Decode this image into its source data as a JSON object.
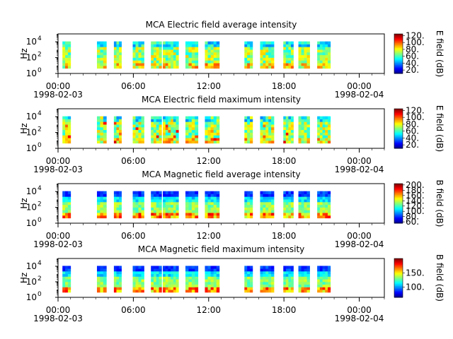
{
  "chart_data": [
    {
      "type": "heatmap",
      "title": "MCA  Electric field average intensity",
      "ylabel": "Hz",
      "yticks": [
        {
          "base": "10",
          "exp": "0"
        },
        {
          "base": "10",
          "exp": "2"
        },
        {
          "base": "10",
          "exp": "4"
        }
      ],
      "ylim_hz": [
        1,
        100000
      ],
      "colorbar_label": "E field (dB)",
      "colorbar_ticks": [
        "120.",
        "100.",
        "80.",
        "60.",
        "40.",
        "20."
      ],
      "colorbar_tick_values": [
        120,
        100,
        80,
        60,
        40,
        20
      ],
      "colorbar_range": [
        10,
        125
      ],
      "palette": "rainbow",
      "band_style": "electric"
    },
    {
      "type": "heatmap",
      "title": "MCA  Electric field maximum intensity",
      "ylabel": "Hz",
      "yticks": [
        {
          "base": "10",
          "exp": "0"
        },
        {
          "base": "10",
          "exp": "2"
        },
        {
          "base": "10",
          "exp": "4"
        }
      ],
      "ylim_hz": [
        1,
        100000
      ],
      "colorbar_label": "E field (dB)",
      "colorbar_ticks": [
        "120.",
        "100.",
        "80.",
        "60.",
        "40.",
        "20."
      ],
      "colorbar_tick_values": [
        120,
        100,
        80,
        60,
        40,
        20
      ],
      "colorbar_range": [
        10,
        125
      ],
      "palette": "rainbow",
      "band_style": "electric"
    },
    {
      "type": "heatmap",
      "title": "MCA  Magnetic field average intensity",
      "ylabel": "Hz",
      "yticks": [
        {
          "base": "10",
          "exp": "0"
        },
        {
          "base": "10",
          "exp": "2"
        },
        {
          "base": "10",
          "exp": "4"
        }
      ],
      "ylim_hz": [
        1,
        100000
      ],
      "colorbar_label": "B field (dB)",
      "colorbar_ticks": [
        "200.",
        "180.",
        "160.",
        "140.",
        "120.",
        "100.",
        "80.",
        "60."
      ],
      "colorbar_tick_values": [
        200,
        180,
        160,
        140,
        120,
        100,
        80,
        60
      ],
      "colorbar_range": [
        55,
        205
      ],
      "palette": "rainbow",
      "band_style": "magnetic"
    },
    {
      "type": "heatmap",
      "title": "MCA  Magnetic field maximum intensity",
      "ylabel": "Hz",
      "yticks": [
        {
          "base": "10",
          "exp": "0"
        },
        {
          "base": "10",
          "exp": "2"
        },
        {
          "base": "10",
          "exp": "4"
        }
      ],
      "ylim_hz": [
        1,
        100000
      ],
      "colorbar_label": "B field (dB)",
      "colorbar_ticks": [
        "150.",
        "100."
      ],
      "colorbar_tick_values": [
        150,
        100
      ],
      "colorbar_range": [
        65,
        200
      ],
      "palette": "rainbow",
      "band_style": "magnetic"
    }
  ],
  "x_axis": {
    "range_hours": [
      0,
      26
    ],
    "major_ticks": [
      {
        "hour": 0,
        "time": "00:00",
        "date": "1998-02-03"
      },
      {
        "hour": 6,
        "time": "06:00",
        "date": ""
      },
      {
        "hour": 12,
        "time": "12:00",
        "date": ""
      },
      {
        "hour": 18,
        "time": "18:00",
        "date": ""
      },
      {
        "hour": 24,
        "time": "00:00",
        "date": "1998-02-04"
      }
    ],
    "minor_tick_step_hours": 1
  },
  "data_intervals_hours": [
    [
      0.35,
      1.0
    ],
    [
      3.1,
      3.85
    ],
    [
      4.45,
      5.05
    ],
    [
      5.95,
      6.85
    ],
    [
      7.4,
      8.25
    ],
    [
      8.35,
      9.6
    ],
    [
      10.15,
      11.15
    ],
    [
      11.7,
      12.85
    ],
    [
      14.85,
      15.5
    ],
    [
      16.1,
      17.2
    ],
    [
      17.95,
      18.75
    ],
    [
      19.15,
      20.05
    ],
    [
      20.65,
      21.7
    ]
  ]
}
